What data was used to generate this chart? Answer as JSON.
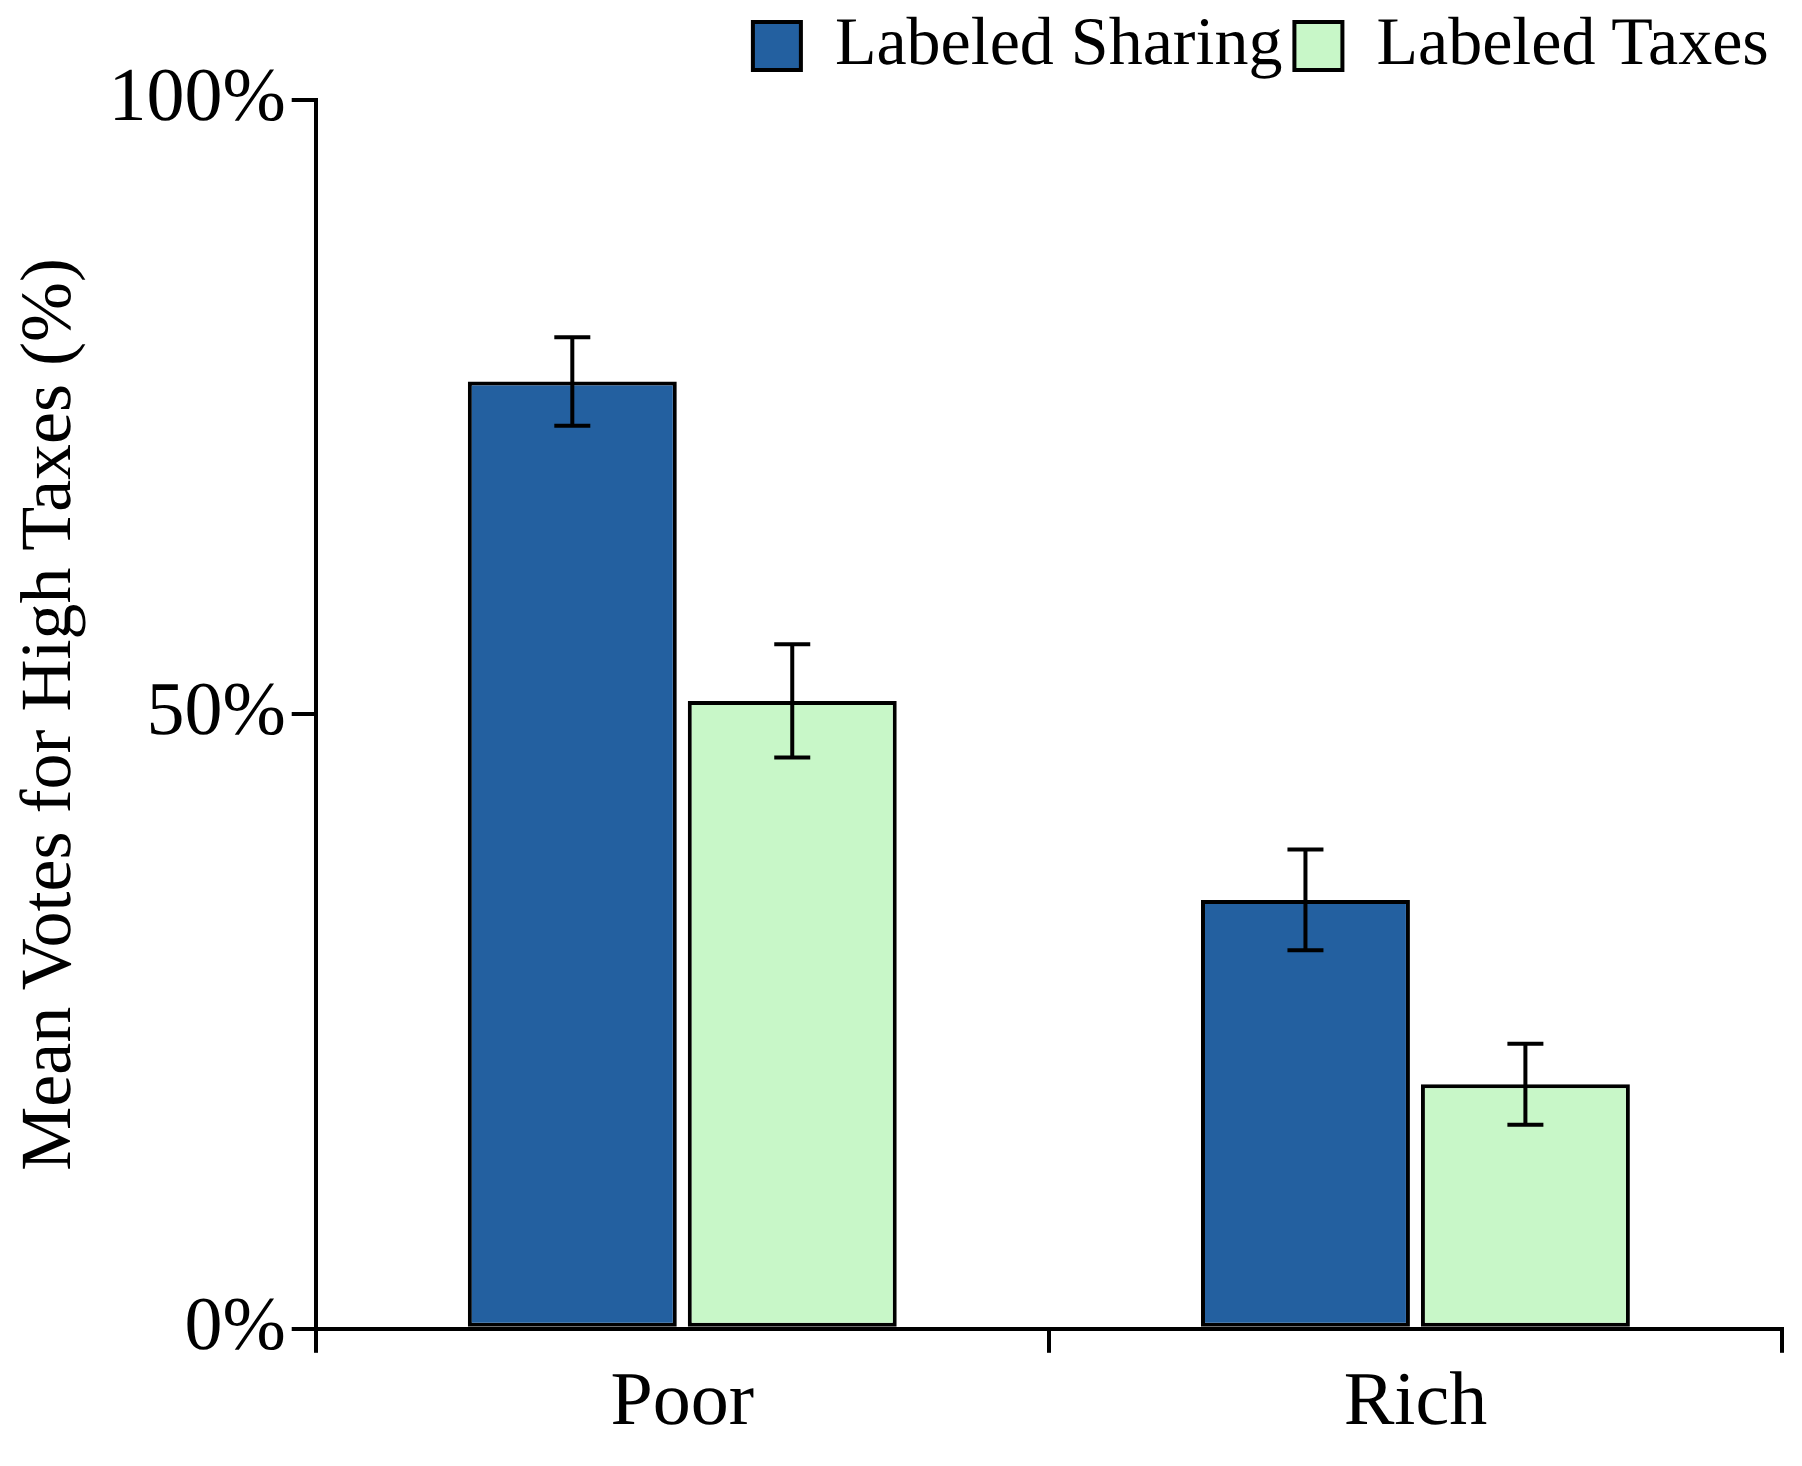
{
  "chart_data": {
    "type": "bar",
    "ylabel": "Mean Votes for High Taxes (%)",
    "categories": [
      "Poor",
      "Rich"
    ],
    "series": [
      {
        "name": "Labeled Sharing",
        "color": "#2360a0",
        "values": [
          77.1,
          34.9
        ],
        "errors": [
          3.6,
          4.1
        ]
      },
      {
        "name": "Labeled Taxes",
        "color": "#c8f7c8",
        "values": [
          51.1,
          19.9
        ],
        "errors": [
          4.6,
          3.3
        ]
      }
    ],
    "ylim": [
      0,
      100
    ],
    "yticks": [
      {
        "value": 0,
        "label": "0%"
      },
      {
        "value": 50,
        "label": "50%"
      },
      {
        "value": 100,
        "label": "100%"
      }
    ],
    "grid": false,
    "legend": "top"
  }
}
